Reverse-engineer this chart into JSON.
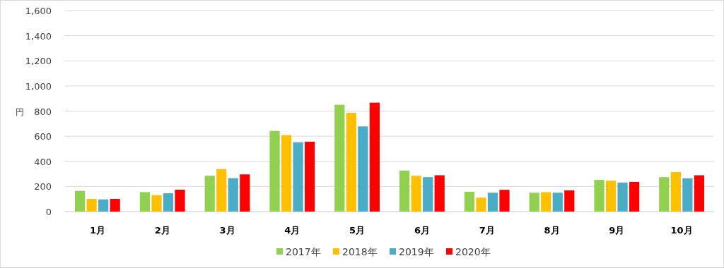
{
  "chart_data": {
    "type": "bar",
    "ylabel": "円",
    "categories": [
      "1月",
      "2月",
      "3月",
      "4月",
      "5月",
      "6月",
      "7月",
      "8月",
      "9月",
      "10月"
    ],
    "series": [
      {
        "name": "2017年",
        "color": "#92d050",
        "values": [
          165,
          155,
          285,
          642,
          850,
          327,
          158,
          150,
          252,
          274
        ]
      },
      {
        "name": "2018年",
        "color": "#ffc000",
        "values": [
          101,
          131,
          339,
          609,
          787,
          285,
          111,
          154,
          246,
          314
        ]
      },
      {
        "name": "2019年",
        "color": "#4bacc6",
        "values": [
          97,
          146,
          266,
          552,
          678,
          274,
          150,
          150,
          231,
          265
        ]
      },
      {
        "name": "2020年",
        "color": "#ff0000",
        "values": [
          101,
          174,
          296,
          556,
          867,
          289,
          173,
          169,
          236,
          289
        ]
      }
    ],
    "ylim": [
      0,
      1600
    ],
    "yticks": [
      {
        "value": 0,
        "label": "0"
      },
      {
        "value": 200,
        "label": "200"
      },
      {
        "value": 400,
        "label": "400"
      },
      {
        "value": 600,
        "label": "600"
      },
      {
        "value": 800,
        "label": "800"
      },
      {
        "value": 1000,
        "label": "1,000"
      },
      {
        "value": 1200,
        "label": "1,200"
      },
      {
        "value": 1400,
        "label": "1,400"
      },
      {
        "value": 1600,
        "label": "1,600"
      }
    ],
    "grid": "y",
    "legend": "bottom"
  }
}
